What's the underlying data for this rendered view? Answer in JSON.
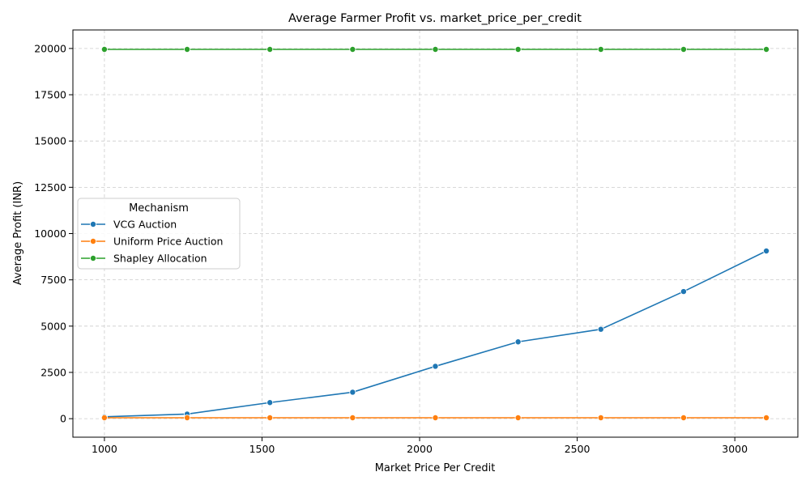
{
  "chart_data": {
    "type": "line",
    "title": "Average Farmer Profit vs. market_price_per_credit",
    "xlabel": "Market Price Per Credit",
    "ylabel": "Average Profit (INR)",
    "x": [
      1000,
      1262.5,
      1525,
      1787.5,
      2050,
      2312.5,
      2575,
      2837.5,
      3100
    ],
    "xlim": [
      900,
      3200
    ],
    "ylim": [
      -1000,
      21000
    ],
    "xticks": [
      1000,
      1500,
      2000,
      2500,
      3000
    ],
    "yticks": [
      0,
      2500,
      5000,
      7500,
      10000,
      12500,
      15000,
      17500,
      20000
    ],
    "grid": true,
    "legend": {
      "title": "Mechanism",
      "placement": "center-left"
    },
    "series": [
      {
        "name": "VCG Auction",
        "color": "#1f77b4",
        "values": [
          100,
          250,
          870,
          1430,
          2830,
          4150,
          4830,
          6870,
          9060
        ]
      },
      {
        "name": "Uniform Price Auction",
        "color": "#ff7f0e",
        "values": [
          50,
          50,
          50,
          50,
          50,
          50,
          50,
          50,
          50
        ]
      },
      {
        "name": "Shapley Allocation",
        "color": "#2ca02c",
        "values": [
          19950,
          19950,
          19950,
          19950,
          19950,
          19950,
          19950,
          19950,
          19950
        ]
      }
    ]
  }
}
